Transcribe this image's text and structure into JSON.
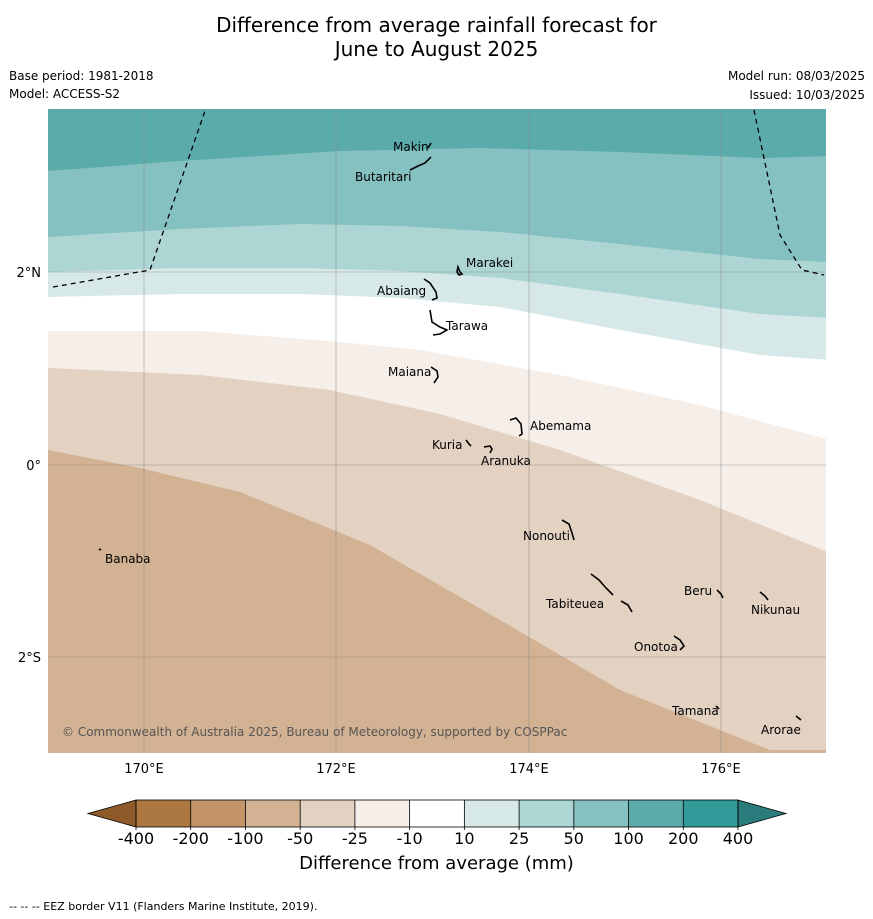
{
  "title_line1": "Difference from average rainfall forecast for",
  "title_line2": "June to August 2025",
  "meta": {
    "base_period": "Base period: 1981-2018",
    "model": "Model: ACCESS-S2",
    "model_run": "Model run: 08/03/2025",
    "issued": "Issued: 10/03/2025"
  },
  "axes": {
    "lon_ticks": [
      "170°E",
      "172°E",
      "174°E",
      "176°E"
    ],
    "lat_ticks": [
      "2°N",
      "0°",
      "2°S"
    ]
  },
  "places": [
    "Makin",
    "Butaritari",
    "Marakei",
    "Abaiang",
    "Tarawa",
    "Maiana",
    "Abemama",
    "Kuria",
    "Aranuka",
    "Banaba",
    "Nonouti",
    "Beru",
    "Nikunau",
    "Tabiteuea",
    "Onotoa",
    "Tamana",
    "Arorae"
  ],
  "copyright": "© Commonwealth of Australia 2025, Bureau of Meteorology, supported by COSPPac",
  "colorbar": {
    "title": "Difference from average (mm)",
    "labels": [
      "-400",
      "-200",
      "-100",
      "-50",
      "-25",
      "-10",
      "10",
      "25",
      "50",
      "100",
      "200",
      "400"
    ],
    "colors": [
      "#8f5a2a",
      "#ad7742",
      "#c29467",
      "#d2b293",
      "#e3d1c1",
      "#f5eee9",
      "#ffffff",
      "#d6e9e8",
      "#acd5d4",
      "#85c1c0",
      "#5babab",
      "#329a99",
      "#2a7d7c"
    ]
  },
  "footer": "--  --  -- EEZ border V11 (Flanders Marine Institute, 2019)."
}
